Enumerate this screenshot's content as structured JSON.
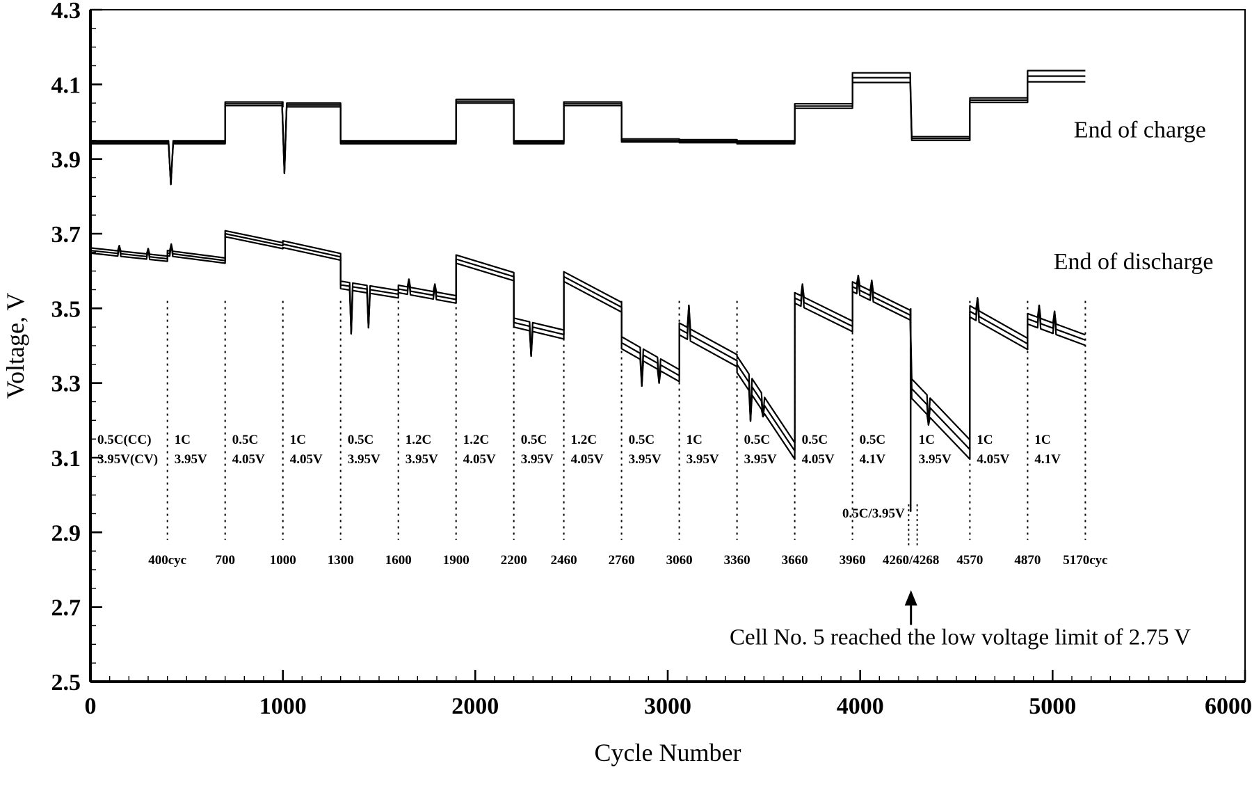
{
  "chart_data": {
    "type": "line",
    "title": "",
    "xlabel": "Cycle Number",
    "ylabel": "Voltage, V",
    "xlim": [
      0,
      6000
    ],
    "ylim": [
      2.5,
      4.3
    ],
    "x_major_ticks": [
      0,
      1000,
      2000,
      3000,
      4000,
      5000,
      6000
    ],
    "y_major_ticks": [
      2.5,
      2.7,
      2.9,
      3.1,
      3.3,
      3.5,
      3.7,
      3.9,
      4.1,
      4.3
    ],
    "x_minor_step": 100,
    "y_minor_step": 0.05,
    "grid": false,
    "series_labels": [
      {
        "text": "End of charge",
        "x": 5110,
        "v": 3.958
      },
      {
        "text": "End of discharge",
        "x": 5005,
        "v": 3.605
      }
    ],
    "segments": [
      {
        "x0": 0,
        "x1": 400,
        "rate": "0.5C(CC)",
        "volt": "3.95V(CV)",
        "charge": 3.945,
        "cspread": 0.004,
        "dis0": 3.655,
        "dis1": 3.633,
        "dspread": 0.007
      },
      {
        "x0": 400,
        "x1": 700,
        "rate": "1C",
        "volt": "3.95V",
        "charge": 3.945,
        "cspread": 0.004,
        "dis0": 3.648,
        "dis1": 3.628,
        "dspread": 0.007
      },
      {
        "x0": 700,
        "x1": 1000,
        "rate": "0.5C",
        "volt": "4.05V",
        "charge": 4.048,
        "cspread": 0.005,
        "dis0": 3.7,
        "dis1": 3.668,
        "dspread": 0.008
      },
      {
        "x0": 1000,
        "x1": 1300,
        "rate": "1C",
        "volt": "4.05V",
        "charge": 4.045,
        "cspread": 0.005,
        "dis0": 3.672,
        "dis1": 3.638,
        "dspread": 0.009
      },
      {
        "x0": 1300,
        "x1": 1600,
        "rate": "0.5C",
        "volt": "3.95V",
        "charge": 3.945,
        "cspread": 0.004,
        "dis0": 3.563,
        "dis1": 3.538,
        "dspread": 0.01
      },
      {
        "x0": 1600,
        "x1": 1900,
        "rate": "1.2C",
        "volt": "3.95V",
        "charge": 3.945,
        "cspread": 0.004,
        "dis0": 3.552,
        "dis1": 3.524,
        "dspread": 0.01
      },
      {
        "x0": 1900,
        "x1": 2200,
        "rate": "1.2C",
        "volt": "4.05V",
        "charge": 4.055,
        "cspread": 0.005,
        "dis0": 3.632,
        "dis1": 3.585,
        "dspread": 0.011
      },
      {
        "x0": 2200,
        "x1": 2460,
        "rate": "0.5C",
        "volt": "3.95V",
        "charge": 3.945,
        "cspread": 0.004,
        "dis0": 3.462,
        "dis1": 3.43,
        "dspread": 0.012
      },
      {
        "x0": 2460,
        "x1": 2760,
        "rate": "1.2C",
        "volt": "4.05V",
        "charge": 4.048,
        "cspread": 0.005,
        "dis0": 3.585,
        "dis1": 3.503,
        "dspread": 0.013
      },
      {
        "x0": 2760,
        "x1": 3060,
        "rate": "0.5C",
        "volt": "3.95V",
        "charge": 3.95,
        "cspread": 0.004,
        "dis0": 3.408,
        "dis1": 3.32,
        "dspread": 0.016
      },
      {
        "x0": 3060,
        "x1": 3360,
        "rate": "1C",
        "volt": "3.95V",
        "charge": 3.948,
        "cspread": 0.004,
        "dis0": 3.445,
        "dis1": 3.36,
        "dspread": 0.016
      },
      {
        "x0": 3360,
        "x1": 3660,
        "rate": "0.5C",
        "volt": "3.95V",
        "charge": 3.945,
        "cspread": 0.004,
        "dis0": 3.35,
        "dis1": 3.118,
        "dspread": 0.022
      },
      {
        "x0": 3660,
        "x1": 3960,
        "rate": "0.5C",
        "volt": "4.05V",
        "charge": 4.042,
        "cspread": 0.006,
        "dis0": 3.528,
        "dis1": 3.452,
        "dspread": 0.014
      },
      {
        "x0": 3960,
        "x1": 4260,
        "rate": "0.5C",
        "volt": "4.1V",
        "charge": 4.118,
        "cspread": 0.013,
        "dis0": 3.558,
        "dis1": 3.482,
        "dspread": 0.013
      },
      {
        "x0": 4268,
        "x1": 4570,
        "rate": "1C",
        "volt": "3.95V",
        "charge": 3.955,
        "cspread": 0.005,
        "dis0": 3.285,
        "dis1": 3.122,
        "dspread": 0.026
      },
      {
        "x0": 4570,
        "x1": 4870,
        "rate": "1C",
        "volt": "4.05V",
        "charge": 4.058,
        "cspread": 0.006,
        "dis0": 3.492,
        "dis1": 3.405,
        "dspread": 0.015
      },
      {
        "x0": 4870,
        "x1": 5170,
        "rate": "1C",
        "volt": "4.1V",
        "charge": 4.122,
        "cspread": 0.015,
        "dis0": 3.472,
        "dis1": 3.415,
        "dspread": 0.014
      }
    ],
    "charge_dips": [
      {
        "x": 418,
        "v": 3.832
      },
      {
        "x": 1008,
        "v": 3.862
      }
    ],
    "discharge_spikes": [
      {
        "x": 150,
        "v": 3.668
      },
      {
        "x": 300,
        "v": 3.66
      },
      {
        "x": 420,
        "v": 3.672
      },
      {
        "x": 1355,
        "v": 3.432
      },
      {
        "x": 1445,
        "v": 3.448
      },
      {
        "x": 1655,
        "v": 3.578
      },
      {
        "x": 1790,
        "v": 3.565
      },
      {
        "x": 2290,
        "v": 3.372
      },
      {
        "x": 2865,
        "v": 3.292
      },
      {
        "x": 2955,
        "v": 3.3
      },
      {
        "x": 3110,
        "v": 3.508
      },
      {
        "x": 3430,
        "v": 3.198
      },
      {
        "x": 3495,
        "v": 3.21
      },
      {
        "x": 3700,
        "v": 3.565
      },
      {
        "x": 3990,
        "v": 3.588
      },
      {
        "x": 4060,
        "v": 3.575
      },
      {
        "x": 4355,
        "v": 3.188
      },
      {
        "x": 4610,
        "v": 3.528
      },
      {
        "x": 4930,
        "v": 3.508
      },
      {
        "x": 5010,
        "v": 3.492
      }
    ],
    "cell5_drop": {
      "x": 4262,
      "v_top": 3.5,
      "v_bottom": 2.955
    },
    "dashed_lines": {
      "xs": [
        400,
        700,
        1000,
        1300,
        1600,
        1900,
        2200,
        2460,
        2760,
        3060,
        3360,
        3660,
        3960,
        4570,
        4870,
        5170
      ],
      "v_top": 3.52,
      "v_bottom": 2.88
    },
    "double_dashed": {
      "xs": [
        4252,
        4296
      ],
      "v_top": 2.975,
      "v_bottom": 2.862
    },
    "special_label": {
      "text": "0.5C/3.95V",
      "x": 4246,
      "v": 2.94
    },
    "label_v": {
      "rate": 3.137,
      "volt": 3.085
    },
    "cycle_markers": [
      {
        "x": 400,
        "label": "400cyc"
      },
      {
        "x": 700,
        "label": "700"
      },
      {
        "x": 1000,
        "label": "1000"
      },
      {
        "x": 1300,
        "label": "1300"
      },
      {
        "x": 1600,
        "label": "1600"
      },
      {
        "x": 1900,
        "label": "1900"
      },
      {
        "x": 2200,
        "label": "2200"
      },
      {
        "x": 2460,
        "label": "2460"
      },
      {
        "x": 2760,
        "label": "2760"
      },
      {
        "x": 3060,
        "label": "3060"
      },
      {
        "x": 3360,
        "label": "3360"
      },
      {
        "x": 3660,
        "label": "3660"
      },
      {
        "x": 3960,
        "label": "3960"
      },
      {
        "x": 4264,
        "label": "4260/4268"
      },
      {
        "x": 4570,
        "label": "4570"
      },
      {
        "x": 4870,
        "label": "4870"
      },
      {
        "x": 5170,
        "label": "5170cyc"
      }
    ],
    "markers_v": 2.815,
    "annotation": {
      "text": "Cell No. 5 reached the low voltage limit of 2.75 V",
      "x": 4520,
      "v": 2.6,
      "arrow_x": 4264,
      "arrow_v_tail": 2.652,
      "arrow_v_head": 2.745
    }
  }
}
